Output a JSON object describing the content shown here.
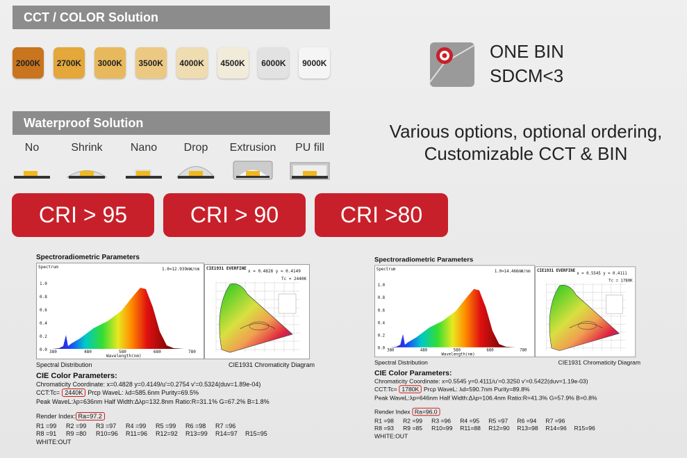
{
  "cct_section": {
    "title": "CCT / COLOR Solution",
    "chips": [
      {
        "label": "2000K",
        "color": "#c9741f"
      },
      {
        "label": "2700K",
        "color": "#e3a73a"
      },
      {
        "label": "3000K",
        "color": "#e8b95c"
      },
      {
        "label": "3500K",
        "color": "#ecc983"
      },
      {
        "label": "4000K",
        "color": "#efdcb0"
      },
      {
        "label": "4500K",
        "color": "#f1ebd9"
      },
      {
        "label": "6000K",
        "color": "#e2e2e2"
      },
      {
        "label": "9000K",
        "color": "#f5f5f5"
      }
    ]
  },
  "waterproof_section": {
    "title": "Waterproof Solution",
    "options": [
      "No",
      "Shrink",
      "Nano",
      "Drop",
      "Extrusion",
      "PU fill"
    ]
  },
  "cri_buttons": [
    "CRI > 95",
    "CRI > 90",
    "CRI >80"
  ],
  "bin": {
    "lines": [
      "ONE BIN",
      "SDCM<3"
    ]
  },
  "tagline": [
    "Various options, optional ordering,",
    "Customizable CCT & BIN"
  ],
  "reports": [
    {
      "title": "Spectroradiometric Parameters",
      "spectrum": {
        "label": "Spectrum",
        "scale": "1.0=12.939mW/nm",
        "yticks": [
          "1.0",
          "0.8",
          "0.6",
          "0.4",
          "0.2",
          "0.0"
        ],
        "xticks": [
          "380",
          "480",
          "580",
          "680",
          "780"
        ],
        "xlabel": "Wavelength(nm)",
        "caption": "Spectral Distribution"
      },
      "cie": {
        "title": "CIE1931 EVERFINE",
        "coords": "x = 0.4828 y = 0.4149",
        "tc": "Tc = 2440K",
        "caption": "CIE1931 Chromaticity Diagram"
      },
      "params_title": "CIE Color Parameters:",
      "chromaticity": "Chromaticity Coordinate: x=0.4828 y=0.4149/u'=0.2754 v'=0.5324(duv=1.89e-04)",
      "cct": [
        "CCT:Tc=",
        "2440K",
        "Prcp WaveL:  λd=585.6nm Purity=69.5%"
      ],
      "peak": "Peak WaveL:λp=636nm  Half Width:Δλp=132.8nm Ratio:R=31.1% G=67.2% B=1.8%",
      "ra": [
        "Render Index:",
        "Ra=97.2"
      ],
      "r_rows": [
        [
          "R1 =99",
          "R2 =99",
          "R3 =97",
          "R4 =99",
          "R5 =99",
          "R6 =98",
          "R7 =96"
        ],
        [
          "R8 =91",
          "R9 =80",
          "R10=96",
          "R11=96",
          "R12=92",
          "R13=99",
          "R14=97",
          "R15=95"
        ]
      ],
      "footer": "WHITE:OUT"
    },
    {
      "title": "Spectroradiometric Parameters",
      "spectrum": {
        "label": "Spectrum",
        "scale": "1.0=14.466mW/nm",
        "yticks": [
          "1.0",
          "0.8",
          "0.6",
          "0.4",
          "0.2",
          "0.0"
        ],
        "xticks": [
          "380",
          "480",
          "580",
          "680",
          "780"
        ],
        "xlabel": "Wavelength(nm)",
        "caption": "Spectral Distribution"
      },
      "cie": {
        "title": "CIE1931 EVERFINE",
        "coords": "x = 0.5545 y = 0.4111",
        "tc": "Tc = 1780K",
        "caption": "CIE1931 Chromaticity Diagram"
      },
      "params_title": "CIE Color Parameters:",
      "chromaticity": "Chromaticity Coordinate: x=0.5545 y=0.4111/u'=0.3250 v'=0.5422(duv=1.19e-03)",
      "cct": [
        "CCT:Tc=",
        "1780K",
        "Prcp WaveL:  λd=590.7nm Purity=89.8%"
      ],
      "peak": "Peak WaveL:λp=646nm  Half Width:Δλp=106.4nm Ratio:R=41.3% G=57.9% B=0.8%",
      "ra": [
        "Render Index ",
        "Ra=96.0"
      ],
      "r_rows": [
        [
          "R1 =98",
          "R2 =99",
          "R3 =96",
          "R4 =95",
          "R5 =97",
          "R6 =94",
          "R7 =96"
        ],
        [
          "R8 =93",
          "R9 =85",
          "R10=99",
          "R11=88",
          "R12=90",
          "R13=98",
          "R14=96",
          "R15=96"
        ]
      ],
      "footer": "WHITE:OUT"
    }
  ]
}
